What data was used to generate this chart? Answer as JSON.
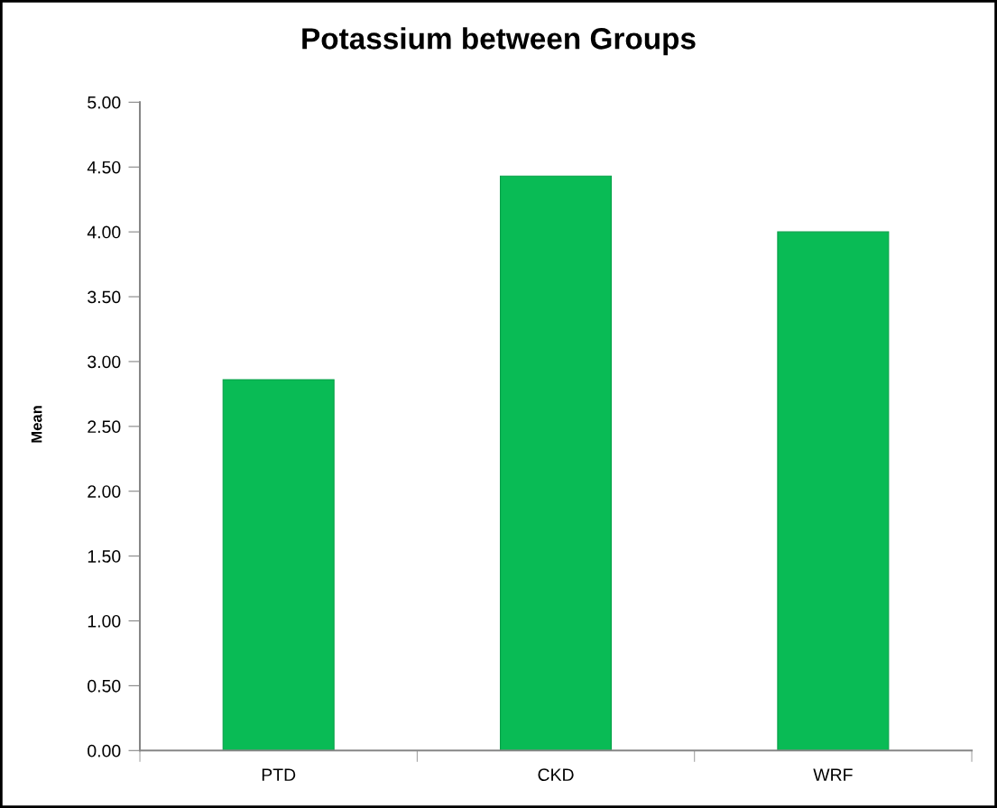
{
  "chart_data": {
    "type": "bar",
    "title": "Potassium between Groups",
    "ylabel": "Mean",
    "categories": [
      "PTD",
      "CKD",
      "WRF"
    ],
    "values": [
      2.86,
      4.43,
      4.0
    ],
    "color": "#09bb55",
    "ylim": [
      0,
      5
    ],
    "yticks": [
      {
        "value": 0,
        "label": "0.00"
      },
      {
        "value": 0.5,
        "label": "0.50"
      },
      {
        "value": 1,
        "label": "1.00"
      },
      {
        "value": 1.5,
        "label": "1.50"
      },
      {
        "value": 2,
        "label": "2.00"
      },
      {
        "value": 2.5,
        "label": "2.50"
      },
      {
        "value": 3,
        "label": "3.00"
      },
      {
        "value": 3.5,
        "label": "3.50"
      },
      {
        "value": 4,
        "label": "4.00"
      },
      {
        "value": 4.5,
        "label": "4.50"
      },
      {
        "value": 5,
        "label": "5.00"
      }
    ]
  }
}
